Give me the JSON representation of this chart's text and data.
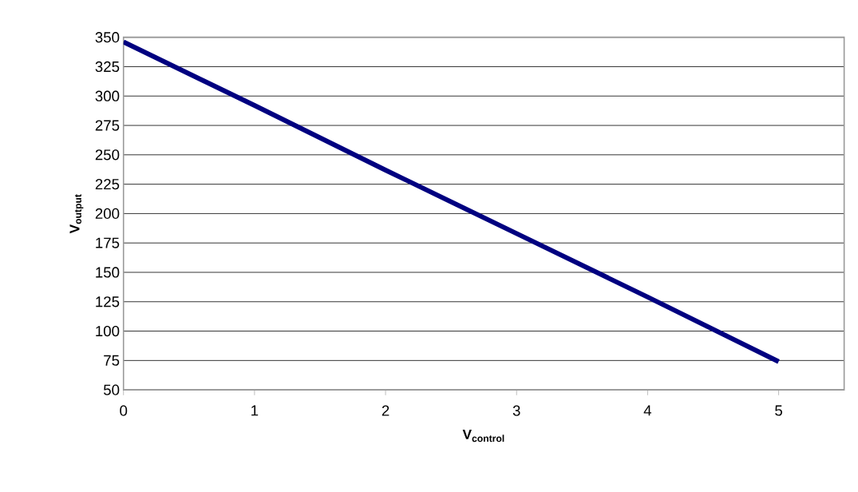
{
  "chart_data": {
    "type": "line",
    "xlabel": "V$_{control}$",
    "ylabel": "V$_{output}$",
    "x": [
      0,
      1,
      2,
      3,
      4,
      5
    ],
    "series": [
      {
        "color": "#000080",
        "values": [
          346,
          292,
          237,
          183,
          129,
          74
        ]
      }
    ],
    "xlim": [
      0,
      5.5
    ],
    "xticks": [
      0,
      1,
      2,
      3,
      4,
      5
    ],
    "ylim": [
      50,
      350
    ],
    "yticks": [
      50,
      75,
      100,
      125,
      150,
      175,
      200,
      225,
      250,
      275,
      300,
      325,
      350
    ],
    "grid": "y",
    "marker": "none",
    "line_style": "solid"
  }
}
